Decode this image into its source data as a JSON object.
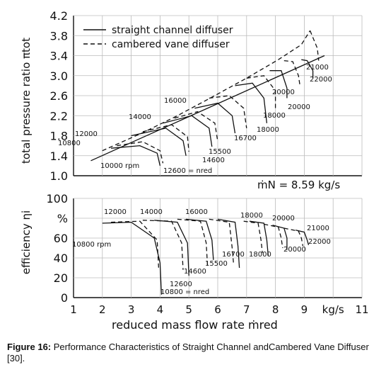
{
  "caption": {
    "label": "Figure 16:",
    "text": "Performance Characteristics of Straight Channel andCambered Vane Diffuser [30]."
  },
  "chart_data": {
    "type": "line",
    "xlabel": "reduced mass flow rate ṁred",
    "x_unit": "kg/s",
    "xlim": [
      1,
      11
    ],
    "x_ticks": [
      "1",
      "2",
      "3",
      "4",
      "5",
      "6",
      "7",
      "8",
      "9",
      "kg/s",
      "11"
    ],
    "legend": {
      "placement": "top-left",
      "entries": [
        {
          "name": "straight channel diffuser",
          "style": "solid"
        },
        {
          "name": "cambered vane diffuser",
          "style": "dashed"
        }
      ]
    },
    "annotation": "ṁN = 8.59 kg/s",
    "panels": [
      {
        "ylabel": "total pressure ratio πtot",
        "ylim": [
          1.0,
          4.2
        ],
        "y_ticks": [
          "1.0",
          "1.4",
          "1.8",
          "2.2",
          "2.6",
          "3.0",
          "3.4",
          "3.8",
          "4.2"
        ],
        "speed_labels": [
          "10000 rpm",
          "10800",
          "12000",
          "12600 = nred",
          "14000",
          "14600",
          "15500",
          "16000",
          "16700",
          "18000",
          "18000",
          "20000",
          "20000",
          "21000",
          "22000"
        ],
        "surge_lines": [
          {
            "style": "solid",
            "points": [
              [
                1.6,
                1.3
              ],
              [
                9.7,
                3.4
              ]
            ]
          },
          {
            "style": "dashed",
            "points": [
              [
                2.0,
                1.5
              ],
              [
                3.4,
                1.86
              ],
              [
                4.6,
                2.2
              ],
              [
                5.8,
                2.57
              ],
              [
                7.0,
                2.95
              ],
              [
                8.1,
                3.32
              ],
              [
                8.9,
                3.62
              ],
              [
                9.2,
                3.9
              ]
            ]
          }
        ],
        "series": [
          {
            "style": "solid",
            "points": [
              [
                2.3,
                1.55
              ],
              [
                3.3,
                1.6
              ],
              [
                3.9,
                1.45
              ],
              [
                4.0,
                1.2
              ]
            ]
          },
          {
            "style": "solid",
            "points": [
              [
                3.0,
                1.8
              ],
              [
                4.2,
                1.95
              ],
              [
                4.8,
                1.7
              ],
              [
                4.9,
                1.4
              ]
            ]
          },
          {
            "style": "solid",
            "points": [
              [
                4.1,
                2.05
              ],
              [
                5.1,
                2.2
              ],
              [
                5.7,
                1.95
              ],
              [
                5.8,
                1.58
              ]
            ]
          },
          {
            "style": "solid",
            "points": [
              [
                5.2,
                2.35
              ],
              [
                6.0,
                2.45
              ],
              [
                6.5,
                2.2
              ],
              [
                6.6,
                1.85
              ]
            ]
          },
          {
            "style": "solid",
            "points": [
              [
                6.6,
                2.8
              ],
              [
                7.2,
                2.85
              ],
              [
                7.6,
                2.55
              ],
              [
                7.7,
                2.05
              ]
            ]
          },
          {
            "style": "solid",
            "points": [
              [
                7.8,
                3.1
              ],
              [
                8.2,
                3.1
              ],
              [
                8.4,
                2.75
              ],
              [
                8.4,
                2.55
              ]
            ]
          },
          {
            "style": "solid",
            "points": [
              [
                8.9,
                3.32
              ],
              [
                9.1,
                3.3
              ],
              [
                9.3,
                3.1
              ],
              [
                9.3,
                2.95
              ]
            ]
          },
          {
            "style": "dashed",
            "points": [
              [
                2.5,
                1.6
              ],
              [
                3.4,
                1.68
              ],
              [
                4.0,
                1.5
              ],
              [
                4.1,
                1.25
              ]
            ]
          },
          {
            "style": "dashed",
            "points": [
              [
                3.4,
                1.88
              ],
              [
                4.4,
                2.02
              ],
              [
                4.95,
                1.78
              ],
              [
                5.0,
                1.48
              ]
            ]
          },
          {
            "style": "dashed",
            "points": [
              [
                4.5,
                2.15
              ],
              [
                5.3,
                2.28
              ],
              [
                5.9,
                2.05
              ],
              [
                6.0,
                1.68
              ]
            ]
          },
          {
            "style": "dashed",
            "points": [
              [
                5.7,
                2.55
              ],
              [
                6.4,
                2.6
              ],
              [
                6.9,
                2.35
              ],
              [
                7.0,
                1.95
              ]
            ]
          },
          {
            "style": "dashed",
            "points": [
              [
                7.0,
                2.95
              ],
              [
                7.6,
                3.0
              ],
              [
                8.0,
                2.7
              ],
              [
                8.0,
                2.35
              ]
            ]
          },
          {
            "style": "dashed",
            "points": [
              [
                8.3,
                3.3
              ],
              [
                8.6,
                3.28
              ],
              [
                8.8,
                3.0
              ],
              [
                8.85,
                2.8
              ]
            ]
          },
          {
            "style": "dashed",
            "points": [
              [
                9.2,
                3.9
              ],
              [
                9.45,
                3.55
              ],
              [
                9.5,
                3.3
              ]
            ]
          }
        ]
      },
      {
        "ylabel": "efficiency ηi",
        "ylim": [
          0,
          100
        ],
        "y_ticks": [
          "0",
          "20",
          "40",
          "60",
          "%",
          "100"
        ],
        "speed_labels": [
          "10800 rpm",
          "12000",
          "14000",
          "16000",
          "18000",
          "20000",
          "20000",
          "21000",
          "22000",
          "16700",
          "18000",
          "15500",
          "14600",
          "12600",
          "10800 = nred"
        ],
        "series": [
          {
            "style": "solid",
            "points": [
              [
                2.0,
                75
              ],
              [
                3.0,
                76
              ],
              [
                3.8,
                60
              ],
              [
                4.0,
                35
              ],
              [
                4.05,
                3
              ]
            ]
          },
          {
            "style": "solid",
            "points": [
              [
                3.8,
                78
              ],
              [
                4.6,
                76
              ],
              [
                4.95,
                55
              ],
              [
                5.0,
                22
              ]
            ]
          },
          {
            "style": "solid",
            "points": [
              [
                4.9,
                79
              ],
              [
                5.6,
                77
              ],
              [
                5.8,
                58
              ],
              [
                5.85,
                38
              ]
            ]
          },
          {
            "style": "solid",
            "points": [
              [
                6.0,
                79
              ],
              [
                6.6,
                76
              ],
              [
                6.7,
                52
              ],
              [
                6.75,
                30
              ]
            ]
          },
          {
            "style": "solid",
            "points": [
              [
                7.1,
                77
              ],
              [
                7.6,
                75
              ],
              [
                7.7,
                58
              ],
              [
                7.75,
                42
              ]
            ]
          },
          {
            "style": "solid",
            "points": [
              [
                7.9,
                73
              ],
              [
                8.3,
                70
              ],
              [
                8.4,
                60
              ],
              [
                8.4,
                48
              ]
            ]
          },
          {
            "style": "solid",
            "points": [
              [
                8.7,
                68
              ],
              [
                9.0,
                66
              ],
              [
                9.1,
                58
              ],
              [
                9.15,
                53
              ]
            ]
          },
          {
            "style": "dashed",
            "points": [
              [
                2.3,
                76
              ],
              [
                3.3,
                77
              ],
              [
                3.9,
                58
              ],
              [
                3.95,
                30
              ]
            ]
          },
          {
            "style": "dashed",
            "points": [
              [
                3.4,
                78
              ],
              [
                4.4,
                77
              ],
              [
                4.75,
                55
              ],
              [
                4.8,
                28
              ]
            ]
          },
          {
            "style": "dashed",
            "points": [
              [
                4.6,
                79
              ],
              [
                5.4,
                77
              ],
              [
                5.6,
                55
              ],
              [
                5.65,
                30
              ]
            ]
          },
          {
            "style": "dashed",
            "points": [
              [
                5.7,
                79
              ],
              [
                6.4,
                76
              ],
              [
                6.5,
                50
              ],
              [
                6.55,
                34
              ]
            ]
          },
          {
            "style": "dashed",
            "points": [
              [
                6.9,
                77
              ],
              [
                7.4,
                75
              ],
              [
                7.5,
                58
              ],
              [
                7.55,
                45
              ]
            ]
          },
          {
            "style": "dashed",
            "points": [
              [
                7.6,
                74
              ],
              [
                8.1,
                71
              ],
              [
                8.2,
                60
              ],
              [
                8.25,
                50
              ]
            ]
          },
          {
            "style": "dashed",
            "points": [
              [
                8.3,
                70
              ],
              [
                8.8,
                67
              ],
              [
                8.9,
                60
              ],
              [
                8.95,
                52
              ]
            ]
          }
        ]
      }
    ]
  }
}
